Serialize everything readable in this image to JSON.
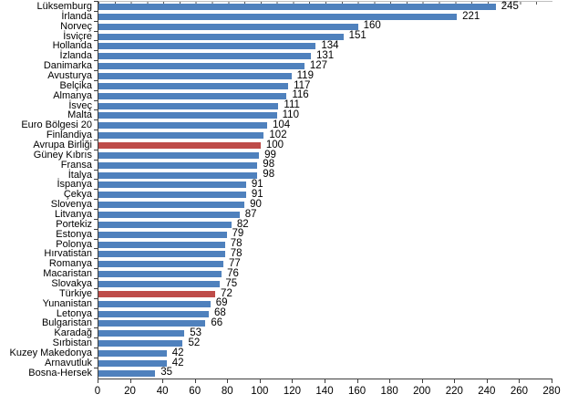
{
  "chart_data": {
    "type": "bar",
    "orientation": "horizontal",
    "title": "",
    "xlabel": "",
    "ylabel": "",
    "categories": [
      "Lüksemburg",
      "İrlanda",
      "Norveç",
      "İsviçre",
      "Hollanda",
      "İzlanda",
      "Danimarka",
      "Avusturya",
      "Belçika",
      "Almanya",
      "İsveç",
      "Malta",
      "Euro Bölgesi 20",
      "Finlandiya",
      "Avrupa Birliği",
      "Güney Kıbrıs",
      "Fransa",
      "İtalya",
      "İspanya",
      "Çekya",
      "Slovenya",
      "Litvanya",
      "Portekiz",
      "Estonya",
      "Polonya",
      "Hırvatistan",
      "Romanya",
      "Macaristan",
      "Slovakya",
      "Türkiye",
      "Yunanistan",
      "Letonya",
      "Bulgaristan",
      "Karadağ",
      "Sırbistan",
      "Kuzey Makedonya",
      "Arnavutluk",
      "Bosna-Hersek"
    ],
    "values": [
      245,
      221,
      160,
      151,
      134,
      131,
      127,
      119,
      117,
      116,
      111,
      110,
      104,
      102,
      100,
      99,
      98,
      98,
      91,
      91,
      90,
      87,
      82,
      79,
      78,
      78,
      77,
      76,
      75,
      72,
      69,
      68,
      66,
      53,
      52,
      42,
      42,
      35
    ],
    "highlight_categories": [
      "Avrupa Birliği",
      "Türkiye"
    ],
    "value_labels": true,
    "xlim": [
      0,
      280
    ],
    "x_ticks": [
      0,
      20,
      40,
      60,
      80,
      100,
      120,
      140,
      160,
      180,
      200,
      220,
      240,
      260,
      280
    ],
    "grid": false,
    "legend": false,
    "colors": {
      "bar": "#4F81BD",
      "highlight": "#BE4C49",
      "axis": "#3F3F3F",
      "text": "#000000",
      "background": "#FFFFFF"
    }
  }
}
